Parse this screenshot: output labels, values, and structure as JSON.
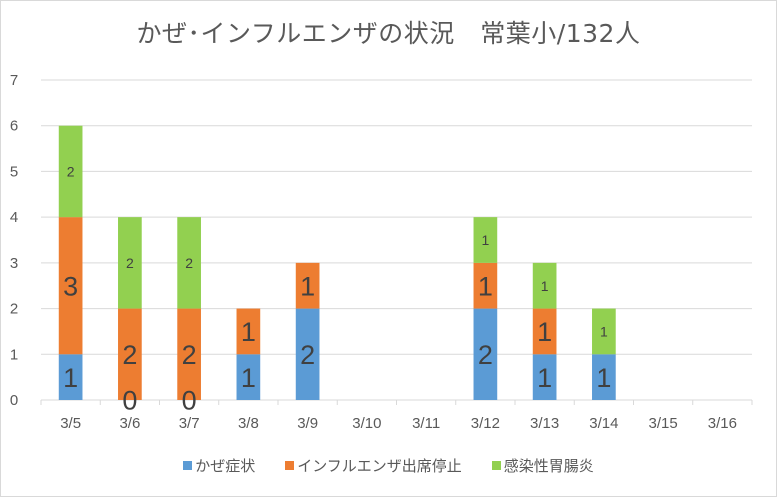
{
  "chart_data": {
    "type": "bar",
    "stacked": true,
    "title": "かぜ･インフルエンザの状況　常葉小/132人",
    "xlabel": "",
    "ylabel": "",
    "ylim": [
      0,
      7
    ],
    "yticks": [
      0,
      1,
      2,
      3,
      4,
      5,
      6,
      7
    ],
    "grid": true,
    "legend_position": "bottom",
    "categories": [
      "3/5",
      "3/6",
      "3/7",
      "3/8",
      "3/9",
      "3/10",
      "3/11",
      "3/12",
      "3/13",
      "3/14",
      "3/15",
      "3/16"
    ],
    "series": [
      {
        "name": "かぜ症状",
        "color": "#5b9bd5",
        "values": [
          1,
          0,
          0,
          1,
          2,
          null,
          null,
          2,
          1,
          1,
          null,
          null
        ],
        "label_large": true
      },
      {
        "name": "インフルエンザ出席停止",
        "color": "#ed7d31",
        "values": [
          3,
          2,
          2,
          1,
          1,
          null,
          null,
          1,
          1,
          null,
          null,
          null
        ],
        "label_large": true
      },
      {
        "name": "感染性胃腸炎",
        "color": "#92d050",
        "values": [
          2,
          2,
          2,
          null,
          null,
          null,
          null,
          1,
          1,
          1,
          null,
          null
        ],
        "label_large": false
      }
    ]
  }
}
